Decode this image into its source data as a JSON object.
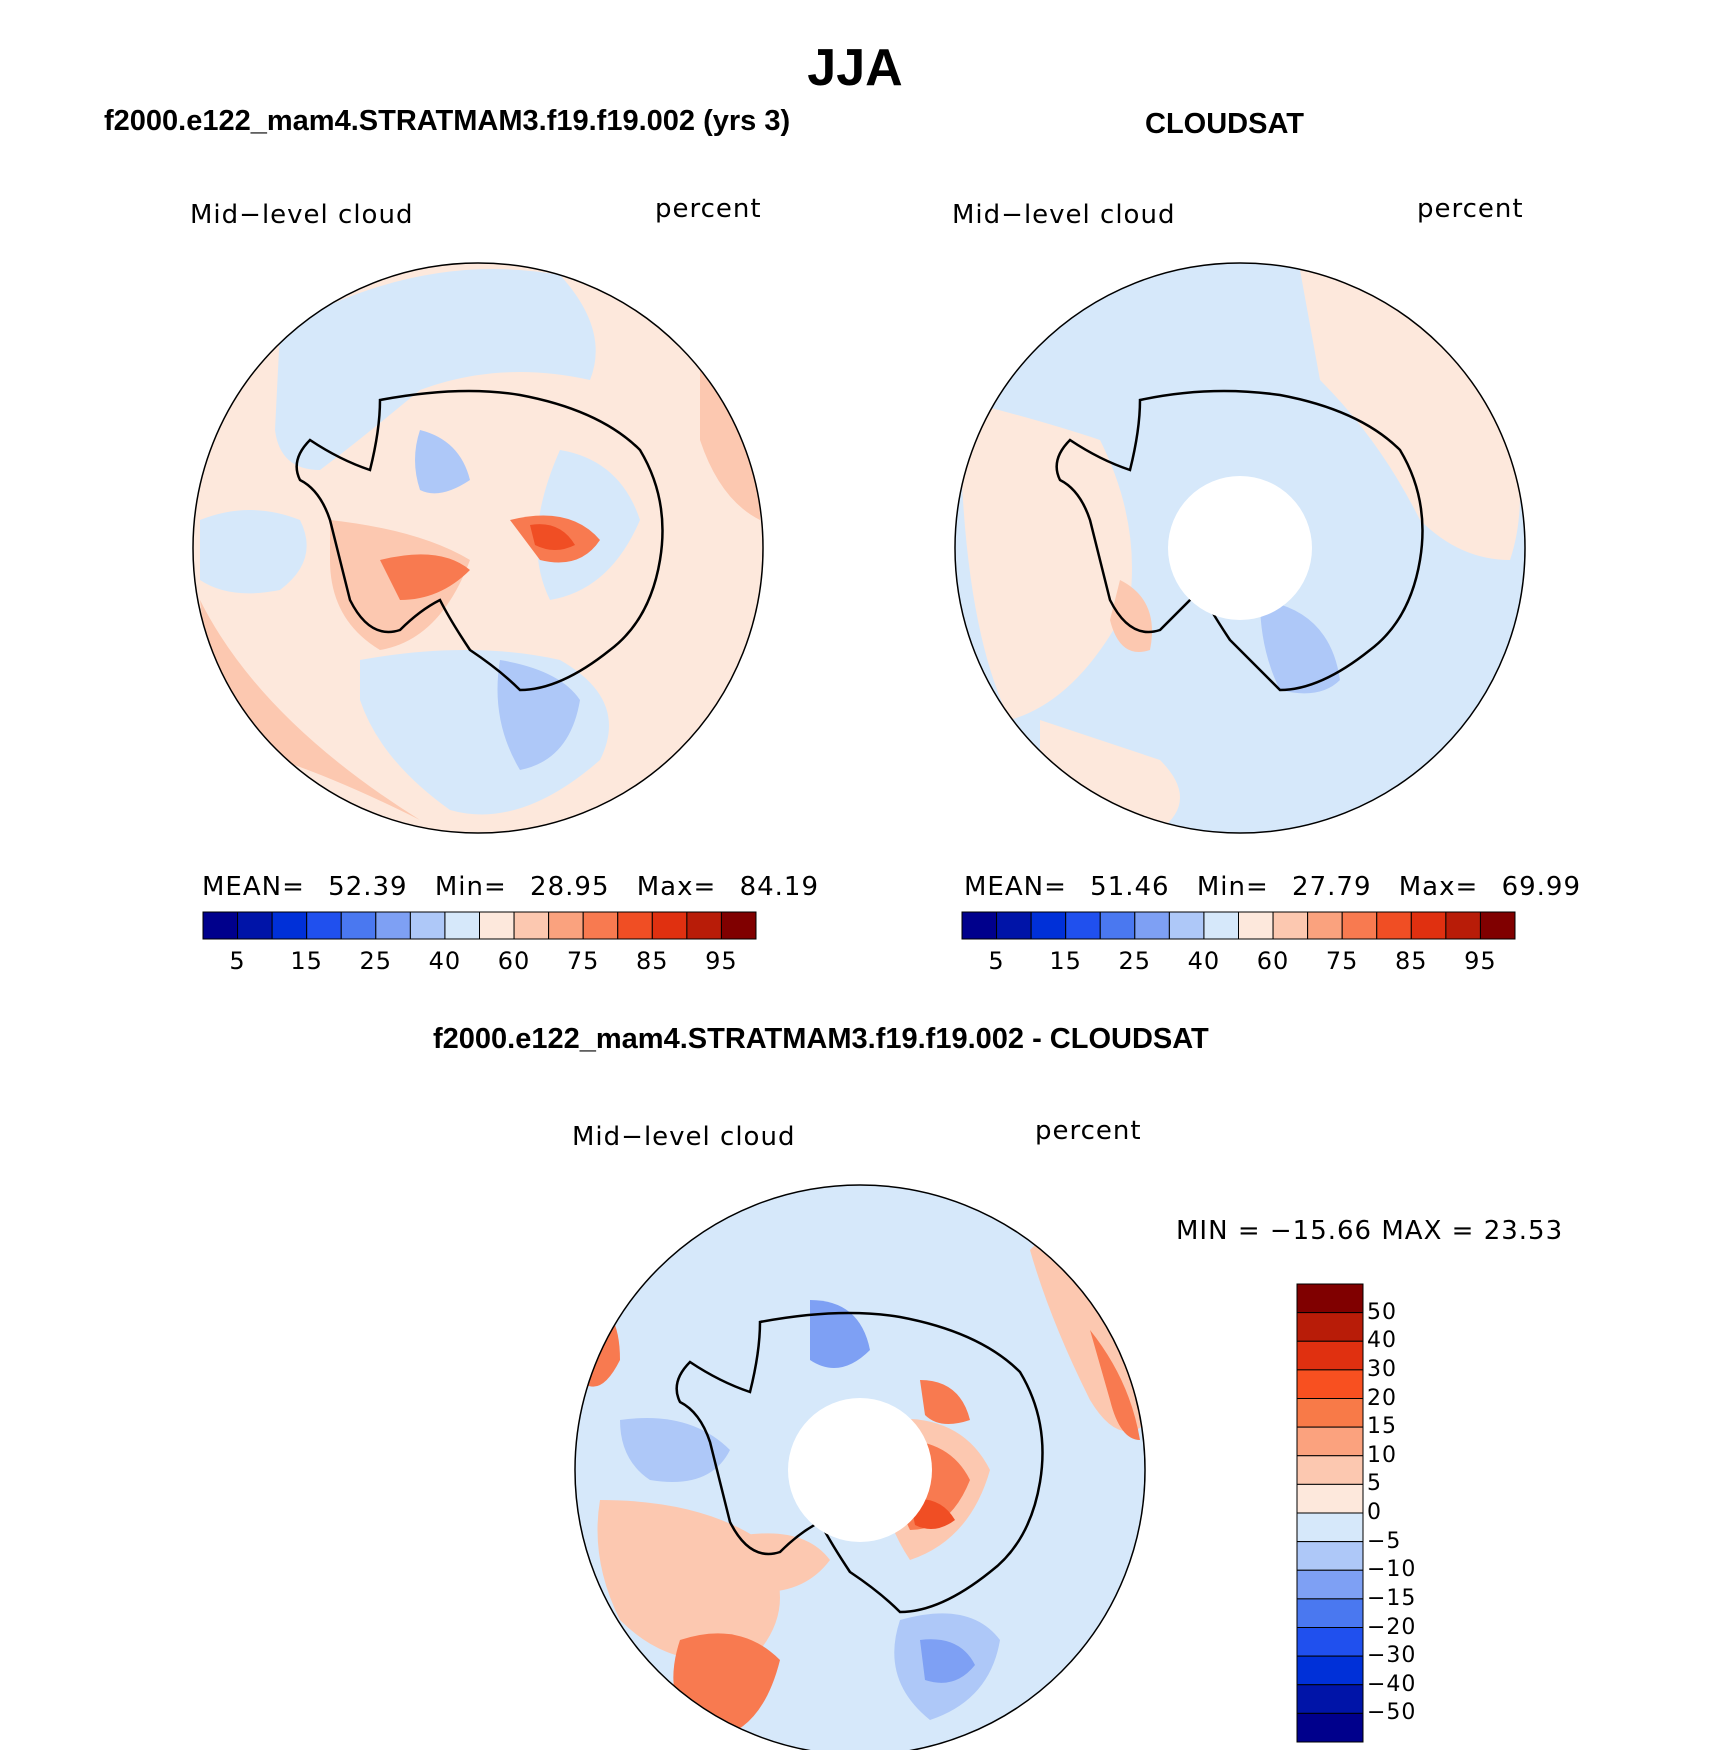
{
  "title": "JJA",
  "panels": {
    "left": {
      "title": "f2000.e122_mam4.STRATMAM3.f19.f19.002 (yrs 3)",
      "variable": "Mid−level cloud",
      "units": "percent",
      "stats": {
        "mean_label": "MEAN=",
        "mean": "52.39",
        "min_label": "Min=",
        "min": "28.95",
        "max_label": "Max=",
        "max": "84.19"
      }
    },
    "right": {
      "title": "CLOUDSAT",
      "variable": "Mid−level cloud",
      "units": "percent",
      "stats": {
        "mean_label": "MEAN=",
        "mean": "51.46",
        "min_label": "Min=",
        "min": "27.79",
        "max_label": "Max=",
        "max": "69.99"
      }
    },
    "diff": {
      "title": "f2000.e122_mam4.STRATMAM3.f19.f19.002 - CLOUDSAT",
      "variable": "Mid−level cloud",
      "units": "percent",
      "minmax": "MIN = −15.66  MAX =   23.53"
    }
  },
  "colorbar_fields": {
    "colors": [
      "#00008c",
      "#0014a8",
      "#0030d8",
      "#2050ee",
      "#4a78f0",
      "#7ea0f4",
      "#aec8f8",
      "#d6e8fa",
      "#fde8dc",
      "#fcc8b0",
      "#faa27e",
      "#f87a50",
      "#f04e24",
      "#e03010",
      "#b81c08",
      "#800000"
    ],
    "labels": [
      "5",
      "15",
      "25",
      "40",
      "60",
      "75",
      "85",
      "95"
    ]
  },
  "colorbar_diff": {
    "colors": [
      "#800000",
      "#b81c08",
      "#e03010",
      "#f85020",
      "#f87a48",
      "#fba27e",
      "#fcc8b0",
      "#fde8dc",
      "#d6e8fa",
      "#aec8f8",
      "#7ea0f4",
      "#4a78f0",
      "#2050ee",
      "#0030d8",
      "#0014a8",
      "#00008c"
    ],
    "labels": [
      "50",
      "40",
      "30",
      "20",
      "15",
      "10",
      "5",
      "0",
      "−5",
      "−10",
      "−15",
      "−20",
      "−30",
      "−40",
      "−50"
    ]
  },
  "palette": {
    "light_blue": "#d6e8fa",
    "blue": "#aec8f8",
    "mid_blue": "#7ea0f4",
    "light_orange": "#fde8dc",
    "orange": "#fcc8b0",
    "dark_orange": "#f87a50",
    "red": "#f04e24"
  }
}
